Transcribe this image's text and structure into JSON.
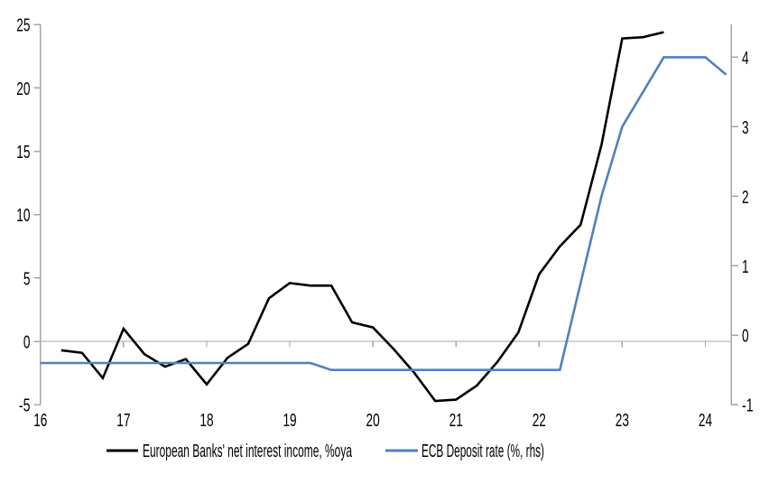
{
  "chart_data": {
    "type": "line",
    "title": "",
    "grid": "zero-line-only",
    "legend_position": "bottom",
    "x_axis": {
      "min": 16,
      "max": 24.31,
      "tick_values": [
        16,
        17,
        18,
        19,
        20,
        21,
        22,
        23,
        24
      ],
      "tick_labels": [
        "16",
        "17",
        "18",
        "19",
        "20",
        "21",
        "22",
        "23",
        "24"
      ]
    },
    "left_axis": {
      "min": -5,
      "max": 25,
      "tick_values": [
        -5,
        0,
        5,
        10,
        15,
        20,
        25
      ],
      "tick_labels": [
        "-5",
        "0",
        "5",
        "10",
        "15",
        "20",
        "25"
      ]
    },
    "right_axis": {
      "min": -1,
      "max": 4.47,
      "tick_values": [
        -1,
        0,
        1,
        2,
        3,
        4
      ],
      "tick_labels": [
        "-1",
        "0",
        "1",
        "2",
        "3",
        "4"
      ]
    },
    "series": [
      {
        "name": "European Banks' net interest income, %oya",
        "axis": "left",
        "color": "#000000",
        "stroke_width": 2.6,
        "x": [
          16.25,
          16.5,
          16.75,
          17.0,
          17.25,
          17.5,
          17.75,
          18.0,
          18.25,
          18.5,
          18.75,
          19.0,
          19.25,
          19.5,
          19.75,
          20.0,
          20.25,
          20.5,
          20.75,
          21.0,
          21.25,
          21.5,
          21.75,
          22.0,
          22.25,
          22.5,
          22.75,
          23.0,
          23.25,
          23.5
        ],
        "values": [
          -0.7,
          -0.9,
          -2.9,
          1.0,
          -1.0,
          -2.0,
          -1.4,
          -3.4,
          -1.3,
          -0.2,
          3.4,
          4.6,
          4.4,
          4.4,
          1.5,
          1.1,
          -0.6,
          -2.5,
          -4.7,
          -4.6,
          -3.5,
          -1.6,
          0.7,
          5.3,
          7.5,
          9.2,
          15.5,
          23.9,
          24.0,
          24.4
        ]
      },
      {
        "name": "ECB Deposit rate (%, rhs)",
        "axis": "right",
        "color": "#4f81bd",
        "stroke_width": 2.6,
        "x": [
          16.0,
          16.25,
          16.5,
          16.75,
          17.0,
          17.25,
          17.5,
          17.75,
          18.0,
          18.25,
          18.5,
          18.75,
          19.0,
          19.25,
          19.5,
          19.75,
          20.0,
          20.25,
          20.5,
          20.75,
          21.0,
          21.25,
          21.5,
          21.75,
          22.0,
          22.25,
          22.5,
          22.75,
          23.0,
          23.25,
          23.5,
          23.75,
          24.0,
          24.25
        ],
        "values": [
          -0.4,
          -0.4,
          -0.4,
          -0.4,
          -0.4,
          -0.4,
          -0.4,
          -0.4,
          -0.4,
          -0.4,
          -0.4,
          -0.4,
          -0.4,
          -0.4,
          -0.5,
          -0.5,
          -0.5,
          -0.5,
          -0.5,
          -0.5,
          -0.5,
          -0.5,
          -0.5,
          -0.5,
          -0.5,
          -0.5,
          0.75,
          2.0,
          3.0,
          3.5,
          4.0,
          4.0,
          4.0,
          3.75
        ]
      }
    ]
  },
  "colors": {
    "axis": "#a6a6a6",
    "zero_line": "#a6a6a6",
    "background": "#ffffff",
    "text": "#000000"
  }
}
